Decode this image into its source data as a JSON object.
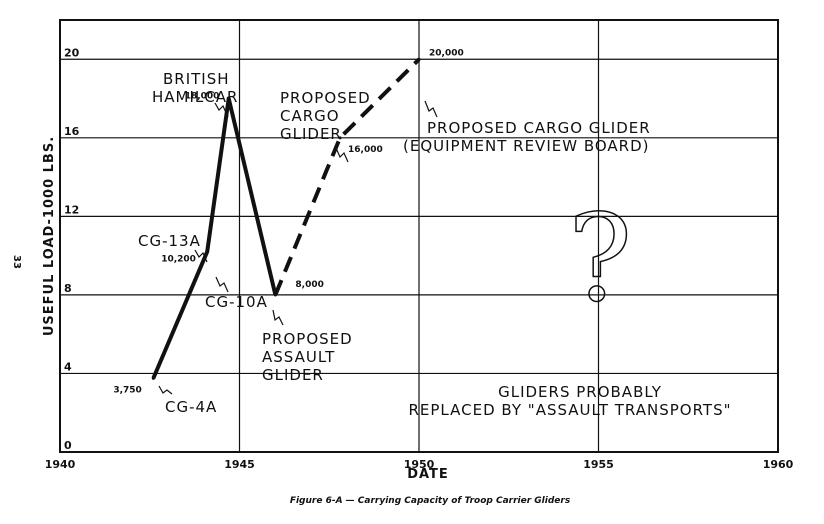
{
  "chart_data": {
    "type": "line",
    "title": "",
    "xlabel": "DATE",
    "ylabel": "USEFUL LOAD-1000 LBS.",
    "xlim": [
      1940,
      1960
    ],
    "ylim": [
      0,
      22
    ],
    "x_ticks": [
      "1940",
      "1945",
      "1950",
      "1955",
      "1960"
    ],
    "y_ticks": [
      "0",
      "4",
      "8",
      "12",
      "16",
      "20"
    ],
    "grid": true,
    "series": [
      {
        "name": "",
        "style": "solid",
        "points": [
          {
            "x": 1942.6,
            "y": 3.75
          },
          {
            "x": 1944.1,
            "y": 10.2
          },
          {
            "x": 1944.7,
            "y": 18.0
          },
          {
            "x": 1946.0,
            "y": 8.0
          }
        ]
      },
      {
        "name": "",
        "style": "dashed",
        "points": [
          {
            "x": 1946.0,
            "y": 8.0
          },
          {
            "x": 1947.8,
            "y": 16.0
          },
          {
            "x": 1950.0,
            "y": 20.0
          }
        ]
      }
    ],
    "value_labels": [
      {
        "text": "3,750",
        "x": 1942.6,
        "y": 3.75
      },
      {
        "text": "10,200",
        "x": 1944.1,
        "y": 10.2
      },
      {
        "text": "18,000",
        "x": 1944.7,
        "y": 18.0
      },
      {
        "text": "8,000",
        "x": 1946.0,
        "y": 8.0
      },
      {
        "text": "16,000",
        "x": 1947.8,
        "y": 16.0
      },
      {
        "text": "20,000",
        "x": 1950.0,
        "y": 20.0
      }
    ],
    "annotations": {
      "cg4a": "CG-4A",
      "cg13a": "CG-13A",
      "cg10a": "CG-10A",
      "hamilcar_1": "BRITISH",
      "hamilcar_2": "HAMILCAR",
      "proposed_cargo_1": "PROPOSED",
      "proposed_cargo_2": "CARGO",
      "proposed_cargo_3": "GLIDER",
      "equip_1": "PROPOSED CARGO GLIDER",
      "equip_2": "(EQUIPMENT REVIEW BOARD)",
      "assault_1": "PROPOSED",
      "assault_2": "ASSAULT",
      "assault_3": "GLIDER",
      "transports_1": "GLIDERS PROBABLY",
      "transports_2": "REPLACED BY \"ASSAULT TRANSPORTS\"",
      "question": "?"
    }
  },
  "caption": "Figure 6-A — Carrying Capacity of Troop Carrier Gliders",
  "page_number": "33"
}
